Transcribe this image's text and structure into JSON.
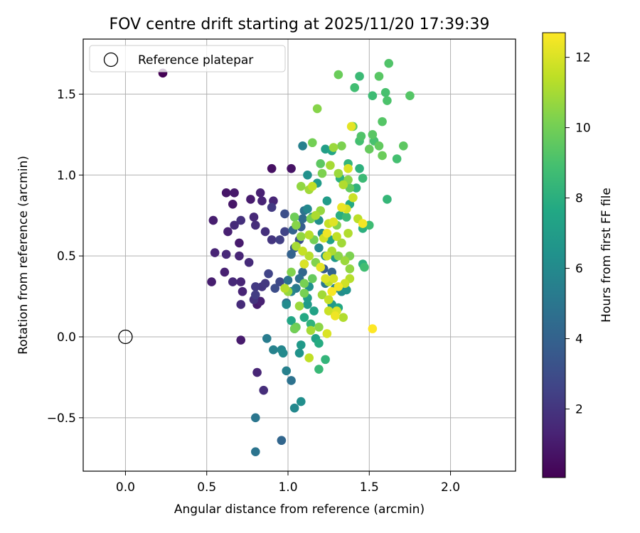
{
  "chart_data": {
    "type": "scatter",
    "title": "FOV centre drift starting at 2025/11/20 17:39:39",
    "xlabel": "Angular distance from reference (arcmin)",
    "ylabel": "Rotation from reference (arcmin)",
    "xlim": [
      -0.26,
      2.4
    ],
    "ylim": [
      -0.83,
      1.84
    ],
    "xticks": [
      0.0,
      0.5,
      1.0,
      1.5,
      2.0
    ],
    "xtick_labels": [
      "0.0",
      "0.5",
      "1.0",
      "1.5",
      "2.0"
    ],
    "yticks": [
      -0.5,
      0.0,
      0.5,
      1.0,
      1.5
    ],
    "ytick_labels": [
      "−0.5",
      "0.0",
      "0.5",
      "1.0",
      "1.5"
    ],
    "grid": true,
    "legend": {
      "label": "Reference platepar",
      "location": "upper-left"
    },
    "reference_point": {
      "x": 0.0,
      "y": 0.0
    },
    "colorbar": {
      "label": "Hours from first FF file",
      "colormap": "viridis",
      "range": [
        0.05,
        12.7
      ],
      "ticks": [
        2,
        4,
        6,
        8,
        10,
        12
      ],
      "tick_labels": [
        "2",
        "4",
        "6",
        "8",
        "10",
        "12"
      ]
    },
    "points": [
      {
        "x": 0.23,
        "y": 1.63,
        "h": 0.1
      },
      {
        "x": 0.9,
        "y": 1.04,
        "h": 0.6
      },
      {
        "x": 1.02,
        "y": 1.04,
        "h": 0.7
      },
      {
        "x": 0.62,
        "y": 0.89,
        "h": 0.8
      },
      {
        "x": 0.67,
        "y": 0.89,
        "h": 0.9
      },
      {
        "x": 0.66,
        "y": 0.82,
        "h": 0.8
      },
      {
        "x": 0.77,
        "y": 0.85,
        "h": 1.0
      },
      {
        "x": 0.83,
        "y": 0.89,
        "h": 1.2
      },
      {
        "x": 0.84,
        "y": 0.84,
        "h": 1.3
      },
      {
        "x": 0.91,
        "y": 0.84,
        "h": 1.4
      },
      {
        "x": 0.9,
        "y": 0.8,
        "h": 2.2
      },
      {
        "x": 0.79,
        "y": 0.74,
        "h": 1.5
      },
      {
        "x": 0.54,
        "y": 0.72,
        "h": 1.1
      },
      {
        "x": 0.67,
        "y": 0.69,
        "h": 1.6
      },
      {
        "x": 0.71,
        "y": 0.72,
        "h": 1.8
      },
      {
        "x": 0.63,
        "y": 0.65,
        "h": 1.2
      },
      {
        "x": 0.7,
        "y": 0.58,
        "h": 1.0
      },
      {
        "x": 0.8,
        "y": 0.69,
        "h": 1.7
      },
      {
        "x": 0.86,
        "y": 0.65,
        "h": 1.8
      },
      {
        "x": 0.9,
        "y": 0.6,
        "h": 2.0
      },
      {
        "x": 0.95,
        "y": 0.6,
        "h": 2.4
      },
      {
        "x": 0.98,
        "y": 0.65,
        "h": 2.6
      },
      {
        "x": 0.55,
        "y": 0.52,
        "h": 1.3
      },
      {
        "x": 0.62,
        "y": 0.51,
        "h": 1.5
      },
      {
        "x": 0.7,
        "y": 0.5,
        "h": 1.4
      },
      {
        "x": 0.76,
        "y": 0.46,
        "h": 1.6
      },
      {
        "x": 0.61,
        "y": 0.4,
        "h": 1.2
      },
      {
        "x": 0.66,
        "y": 0.34,
        "h": 1.5
      },
      {
        "x": 0.71,
        "y": 0.34,
        "h": 1.4
      },
      {
        "x": 0.53,
        "y": 0.34,
        "h": 1.1
      },
      {
        "x": 0.72,
        "y": 0.28,
        "h": 1.3
      },
      {
        "x": 0.71,
        "y": 0.2,
        "h": 1.6
      },
      {
        "x": 0.81,
        "y": 0.2,
        "h": 1.0
      },
      {
        "x": 0.83,
        "y": 0.22,
        "h": 1.2
      },
      {
        "x": 0.8,
        "y": 0.31,
        "h": 2.2
      },
      {
        "x": 0.8,
        "y": 0.26,
        "h": 2.3
      },
      {
        "x": 0.84,
        "y": 0.31,
        "h": 2.0
      },
      {
        "x": 0.88,
        "y": 0.39,
        "h": 2.6
      },
      {
        "x": 0.95,
        "y": 0.34,
        "h": 2.8
      },
      {
        "x": 0.92,
        "y": 0.3,
        "h": 3.0
      },
      {
        "x": 0.86,
        "y": 0.33,
        "h": 2.1
      },
      {
        "x": 0.79,
        "y": 0.23,
        "h": 1.9
      },
      {
        "x": 0.71,
        "y": -0.02,
        "h": 1.0
      },
      {
        "x": 0.81,
        "y": -0.22,
        "h": 1.4
      },
      {
        "x": 0.85,
        "y": -0.33,
        "h": 1.7
      },
      {
        "x": 0.8,
        "y": -0.5,
        "h": 5.0
      },
      {
        "x": 0.8,
        "y": -0.71,
        "h": 4.9
      },
      {
        "x": 0.96,
        "y": -0.64,
        "h": 4.2
      },
      {
        "x": 0.87,
        "y": -0.01,
        "h": 5.3
      },
      {
        "x": 0.91,
        "y": -0.08,
        "h": 5.6
      },
      {
        "x": 0.96,
        "y": -0.08,
        "h": 5.8
      },
      {
        "x": 0.97,
        "y": -0.1,
        "h": 6.0
      },
      {
        "x": 0.99,
        "y": -0.21,
        "h": 5.5
      },
      {
        "x": 1.02,
        "y": -0.27,
        "h": 4.8
      },
      {
        "x": 1.04,
        "y": -0.44,
        "h": 5.9
      },
      {
        "x": 1.08,
        "y": -0.4,
        "h": 6.2
      },
      {
        "x": 1.07,
        "y": -0.1,
        "h": 6.5
      },
      {
        "x": 1.08,
        "y": -0.05,
        "h": 6.8
      },
      {
        "x": 1.04,
        "y": 0.05,
        "h": 6.3
      },
      {
        "x": 1.02,
        "y": 0.1,
        "h": 7.5
      },
      {
        "x": 0.99,
        "y": 0.2,
        "h": 6.0
      },
      {
        "x": 1.02,
        "y": 0.28,
        "h": 5.7
      },
      {
        "x": 1.0,
        "y": 0.35,
        "h": 4.8
      },
      {
        "x": 0.99,
        "y": 0.21,
        "h": 4.5
      },
      {
        "x": 1.05,
        "y": 0.3,
        "h": 5.2
      },
      {
        "x": 1.09,
        "y": 0.4,
        "h": 4.2
      },
      {
        "x": 1.1,
        "y": 0.45,
        "h": 5.0
      },
      {
        "x": 1.07,
        "y": 0.36,
        "h": 4.6
      },
      {
        "x": 1.02,
        "y": 0.51,
        "h": 4.0
      },
      {
        "x": 1.04,
        "y": 0.55,
        "h": 3.6
      },
      {
        "x": 1.07,
        "y": 0.6,
        "h": 3.2
      },
      {
        "x": 0.98,
        "y": 0.76,
        "h": 3.1
      },
      {
        "x": 1.03,
        "y": 0.66,
        "h": 4.1
      },
      {
        "x": 1.09,
        "y": 0.73,
        "h": 4.4
      },
      {
        "x": 1.1,
        "y": 0.78,
        "h": 4.9
      },
      {
        "x": 1.08,
        "y": 0.68,
        "h": 3.8
      },
      {
        "x": 1.09,
        "y": 1.18,
        "h": 5.5
      },
      {
        "x": 1.12,
        "y": 1.0,
        "h": 6.4
      },
      {
        "x": 1.18,
        "y": 0.95,
        "h": 6.9
      },
      {
        "x": 1.23,
        "y": 1.16,
        "h": 7.1
      },
      {
        "x": 1.27,
        "y": 1.15,
        "h": 7.4
      },
      {
        "x": 1.12,
        "y": 0.79,
        "h": 5.9
      },
      {
        "x": 1.15,
        "y": 0.74,
        "h": 6.6
      },
      {
        "x": 1.19,
        "y": 0.72,
        "h": 6.2
      },
      {
        "x": 1.24,
        "y": 0.84,
        "h": 7.0
      },
      {
        "x": 1.21,
        "y": 0.64,
        "h": 6.0
      },
      {
        "x": 1.26,
        "y": 0.6,
        "h": 7.2
      },
      {
        "x": 1.19,
        "y": 0.55,
        "h": 5.8
      },
      {
        "x": 1.23,
        "y": 0.5,
        "h": 6.3
      },
      {
        "x": 1.29,
        "y": 0.49,
        "h": 6.7
      },
      {
        "x": 1.22,
        "y": 0.42,
        "h": 3.6
      },
      {
        "x": 1.27,
        "y": 0.4,
        "h": 4.0
      },
      {
        "x": 1.23,
        "y": 0.33,
        "h": 5.1
      },
      {
        "x": 1.29,
        "y": 0.3,
        "h": 5.5
      },
      {
        "x": 1.33,
        "y": 0.28,
        "h": 6.1
      },
      {
        "x": 1.36,
        "y": 0.29,
        "h": 6.5
      },
      {
        "x": 1.12,
        "y": 0.2,
        "h": 6.9
      },
      {
        "x": 1.16,
        "y": 0.16,
        "h": 7.3
      },
      {
        "x": 1.1,
        "y": 0.12,
        "h": 7.7
      },
      {
        "x": 1.14,
        "y": 0.08,
        "h": 8.2
      },
      {
        "x": 1.17,
        "y": -0.01,
        "h": 7.3
      },
      {
        "x": 1.19,
        "y": -0.04,
        "h": 7.8
      },
      {
        "x": 1.23,
        "y": -0.14,
        "h": 8.3
      },
      {
        "x": 1.19,
        "y": -0.2,
        "h": 8.5
      },
      {
        "x": 1.13,
        "y": 0.31,
        "h": 6.4
      },
      {
        "x": 1.27,
        "y": 0.2,
        "h": 6.8
      },
      {
        "x": 1.31,
        "y": 0.18,
        "h": 7.6
      },
      {
        "x": 1.12,
        "y": 0.24,
        "h": 7.1
      },
      {
        "x": 1.32,
        "y": 0.75,
        "h": 7.9
      },
      {
        "x": 1.36,
        "y": 0.74,
        "h": 8.6
      },
      {
        "x": 1.38,
        "y": 0.82,
        "h": 7.7
      },
      {
        "x": 1.32,
        "y": 0.98,
        "h": 8.0
      },
      {
        "x": 1.37,
        "y": 1.07,
        "h": 8.3
      },
      {
        "x": 1.44,
        "y": 1.04,
        "h": 8.1
      },
      {
        "x": 1.44,
        "y": 1.21,
        "h": 8.9
      },
      {
        "x": 1.42,
        "y": 0.92,
        "h": 8.2
      },
      {
        "x": 1.46,
        "y": 0.98,
        "h": 8.6
      },
      {
        "x": 1.46,
        "y": 0.45,
        "h": 8.1
      },
      {
        "x": 1.47,
        "y": 0.43,
        "h": 8.8
      },
      {
        "x": 1.5,
        "y": 0.69,
        "h": 8.7
      },
      {
        "x": 1.46,
        "y": 0.67,
        "h": 8.0
      },
      {
        "x": 1.45,
        "y": 1.24,
        "h": 9.2
      },
      {
        "x": 1.5,
        "y": 1.16,
        "h": 9.7
      },
      {
        "x": 1.52,
        "y": 1.25,
        "h": 9.4
      },
      {
        "x": 1.53,
        "y": 1.21,
        "h": 9.0
      },
      {
        "x": 1.56,
        "y": 1.18,
        "h": 9.6
      },
      {
        "x": 1.58,
        "y": 1.12,
        "h": 9.8
      },
      {
        "x": 1.61,
        "y": 0.85,
        "h": 8.4
      },
      {
        "x": 1.58,
        "y": 1.33,
        "h": 9.3
      },
      {
        "x": 1.61,
        "y": 1.46,
        "h": 9.1
      },
      {
        "x": 1.67,
        "y": 1.1,
        "h": 8.9
      },
      {
        "x": 1.71,
        "y": 1.18,
        "h": 9.5
      },
      {
        "x": 1.62,
        "y": 1.69,
        "h": 9.2
      },
      {
        "x": 1.6,
        "y": 1.51,
        "h": 9.0
      },
      {
        "x": 1.56,
        "y": 1.61,
        "h": 9.4
      },
      {
        "x": 1.44,
        "y": 1.61,
        "h": 8.6
      },
      {
        "x": 1.41,
        "y": 1.54,
        "h": 8.8
      },
      {
        "x": 1.52,
        "y": 1.49,
        "h": 8.7
      },
      {
        "x": 1.75,
        "y": 1.49,
        "h": 9.3
      },
      {
        "x": 1.31,
        "y": 1.62,
        "h": 9.8
      },
      {
        "x": 1.18,
        "y": 1.41,
        "h": 10.4
      },
      {
        "x": 1.15,
        "y": 1.2,
        "h": 10.0
      },
      {
        "x": 1.28,
        "y": 1.17,
        "h": 10.8
      },
      {
        "x": 1.33,
        "y": 1.18,
        "h": 10.2
      },
      {
        "x": 1.4,
        "y": 1.3,
        "h": 9.6
      },
      {
        "x": 1.39,
        "y": 1.3,
        "h": 12.2
      },
      {
        "x": 1.2,
        "y": 1.07,
        "h": 9.5
      },
      {
        "x": 1.21,
        "y": 1.01,
        "h": 10.2
      },
      {
        "x": 1.26,
        "y": 1.06,
        "h": 11.0
      },
      {
        "x": 1.31,
        "y": 1.01,
        "h": 10.8
      },
      {
        "x": 1.34,
        "y": 0.94,
        "h": 11.2
      },
      {
        "x": 1.37,
        "y": 0.97,
        "h": 10.5
      },
      {
        "x": 1.38,
        "y": 0.92,
        "h": 9.6
      },
      {
        "x": 1.08,
        "y": 0.93,
        "h": 10.6
      },
      {
        "x": 1.13,
        "y": 0.91,
        "h": 10.9
      },
      {
        "x": 1.15,
        "y": 0.93,
        "h": 11.5
      },
      {
        "x": 1.37,
        "y": 1.04,
        "h": 12.0
      },
      {
        "x": 1.4,
        "y": 0.86,
        "h": 11.7
      },
      {
        "x": 1.33,
        "y": 0.8,
        "h": 12.3
      },
      {
        "x": 1.36,
        "y": 0.79,
        "h": 11.9
      },
      {
        "x": 1.43,
        "y": 0.73,
        "h": 11.4
      },
      {
        "x": 1.46,
        "y": 0.7,
        "h": 12.5
      },
      {
        "x": 1.3,
        "y": 0.69,
        "h": 10.3
      },
      {
        "x": 1.28,
        "y": 0.71,
        "h": 12.1
      },
      {
        "x": 1.25,
        "y": 0.7,
        "h": 11.6
      },
      {
        "x": 1.2,
        "y": 0.78,
        "h": 10.7
      },
      {
        "x": 1.17,
        "y": 0.75,
        "h": 11.1
      },
      {
        "x": 1.14,
        "y": 0.73,
        "h": 10.1
      },
      {
        "x": 1.05,
        "y": 0.69,
        "h": 10.4
      },
      {
        "x": 1.04,
        "y": 0.74,
        "h": 9.9
      },
      {
        "x": 1.08,
        "y": 0.62,
        "h": 10.6
      },
      {
        "x": 1.13,
        "y": 0.63,
        "h": 11.3
      },
      {
        "x": 1.16,
        "y": 0.6,
        "h": 10.0
      },
      {
        "x": 1.22,
        "y": 0.61,
        "h": 11.8
      },
      {
        "x": 1.24,
        "y": 0.64,
        "h": 12.4
      },
      {
        "x": 1.3,
        "y": 0.62,
        "h": 11.5
      },
      {
        "x": 1.33,
        "y": 0.58,
        "h": 10.9
      },
      {
        "x": 1.37,
        "y": 0.64,
        "h": 11.2
      },
      {
        "x": 1.05,
        "y": 0.56,
        "h": 11.0
      },
      {
        "x": 1.09,
        "y": 0.53,
        "h": 11.6
      },
      {
        "x": 1.1,
        "y": 0.45,
        "h": 12.0
      },
      {
        "x": 1.13,
        "y": 0.5,
        "h": 11.3
      },
      {
        "x": 1.17,
        "y": 0.46,
        "h": 10.3
      },
      {
        "x": 1.2,
        "y": 0.43,
        "h": 12.2
      },
      {
        "x": 1.24,
        "y": 0.5,
        "h": 11.7
      },
      {
        "x": 1.27,
        "y": 0.53,
        "h": 11.1
      },
      {
        "x": 1.31,
        "y": 0.5,
        "h": 10.5
      },
      {
        "x": 1.35,
        "y": 0.47,
        "h": 10.8
      },
      {
        "x": 1.38,
        "y": 0.5,
        "h": 10.2
      },
      {
        "x": 1.02,
        "y": 0.4,
        "h": 10.3
      },
      {
        "x": 1.1,
        "y": 0.33,
        "h": 10.1
      },
      {
        "x": 1.15,
        "y": 0.36,
        "h": 9.7
      },
      {
        "x": 1.23,
        "y": 0.36,
        "h": 12.0
      },
      {
        "x": 1.25,
        "y": 0.34,
        "h": 11.4
      },
      {
        "x": 1.28,
        "y": 0.36,
        "h": 11.9
      },
      {
        "x": 1.31,
        "y": 0.31,
        "h": 12.5
      },
      {
        "x": 1.35,
        "y": 0.33,
        "h": 11.8
      },
      {
        "x": 1.38,
        "y": 0.36,
        "h": 11.3
      },
      {
        "x": 1.38,
        "y": 0.42,
        "h": 10.6
      },
      {
        "x": 1.27,
        "y": 0.28,
        "h": 12.6
      },
      {
        "x": 1.25,
        "y": 0.23,
        "h": 11.6
      },
      {
        "x": 1.21,
        "y": 0.26,
        "h": 10.9
      },
      {
        "x": 1.1,
        "y": 0.27,
        "h": 10.1
      },
      {
        "x": 1.07,
        "y": 0.19,
        "h": 10.8
      },
      {
        "x": 1.0,
        "y": 0.28,
        "h": 10.7
      },
      {
        "x": 0.98,
        "y": 0.3,
        "h": 11.3
      },
      {
        "x": 1.25,
        "y": 0.16,
        "h": 11.7
      },
      {
        "x": 1.29,
        "y": 0.13,
        "h": 12.4
      },
      {
        "x": 1.3,
        "y": 0.16,
        "h": 12.0
      },
      {
        "x": 1.34,
        "y": 0.12,
        "h": 11.2
      },
      {
        "x": 1.19,
        "y": 0.06,
        "h": 10.5
      },
      {
        "x": 1.04,
        "y": 0.05,
        "h": 10.0
      },
      {
        "x": 1.05,
        "y": 0.06,
        "h": 9.8
      },
      {
        "x": 1.14,
        "y": 0.04,
        "h": 11.0
      },
      {
        "x": 1.24,
        "y": 0.02,
        "h": 12.0
      },
      {
        "x": 1.13,
        "y": -0.13,
        "h": 11.5
      },
      {
        "x": 1.52,
        "y": 0.05,
        "h": 12.7
      }
    ]
  }
}
